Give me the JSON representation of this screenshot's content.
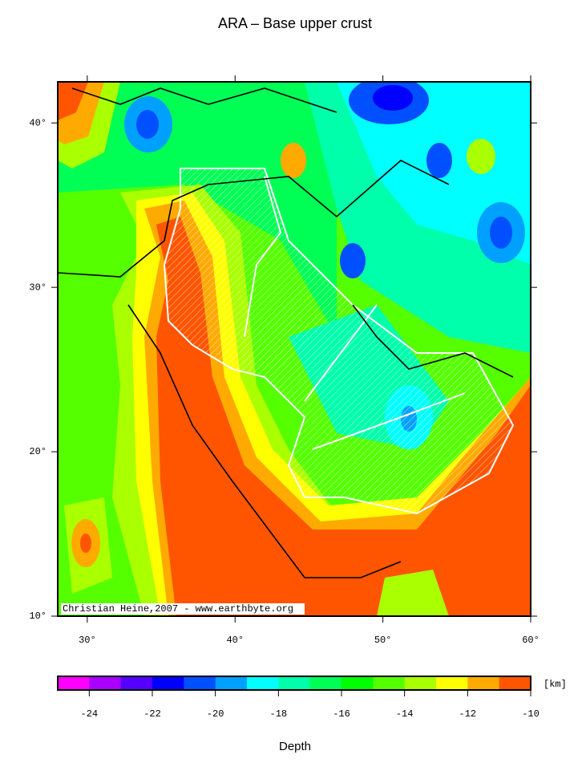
{
  "title": "ARA – Base upper crust",
  "map": {
    "xlim": [
      28,
      60
    ],
    "ylim": [
      10,
      42.5
    ],
    "xticks": [
      {
        "value": 30,
        "label": "30°"
      },
      {
        "value": 40,
        "label": "40°"
      },
      {
        "value": 50,
        "label": "50°"
      },
      {
        "value": 60,
        "label": "60°"
      }
    ],
    "yticks": [
      {
        "value": 10,
        "label": "10°"
      },
      {
        "value": 20,
        "label": "20°"
      },
      {
        "value": 30,
        "label": "30°"
      },
      {
        "value": 40,
        "label": "40°"
      }
    ],
    "credit": "Christian Heine,2007 - www.earthbyte.org"
  },
  "colorbar": {
    "lim": [
      -25,
      -10
    ],
    "ticks": [
      -24,
      -22,
      -20,
      -18,
      -16,
      -14,
      -12,
      -10
    ],
    "colors": [
      "#ff00ff",
      "#aa00ff",
      "#5500ff",
      "#0000ff",
      "#0050ff",
      "#00a0ff",
      "#00ffff",
      "#00ffaa",
      "#00ff55",
      "#00ff00",
      "#55ff00",
      "#aaff00",
      "#ffff00",
      "#ffaa00",
      "#ff5500"
    ],
    "unit": "[km]",
    "label": "Depth"
  }
}
